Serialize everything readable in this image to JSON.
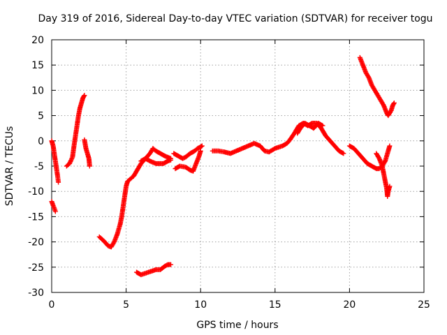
{
  "chart_data": {
    "type": "scatter",
    "title": "Day 319 of 2016, Sidereal Day-to-day VTEC variation (SDTVAR) for receiver togu",
    "xlabel": "GPS time / hours",
    "ylabel": "SDTVAR / TECUs",
    "xlim": [
      0,
      25
    ],
    "ylim": [
      -30,
      20
    ],
    "xticks": [
      "0",
      "5",
      "10",
      "15",
      "20",
      "25"
    ],
    "yticks": [
      "20",
      "15",
      "10",
      "5",
      "0",
      "-5",
      "-10",
      "-15",
      "-20",
      "-25",
      "-30"
    ],
    "grid": true,
    "marker": "plus",
    "color": "#ff0000",
    "series": [
      {
        "points": [
          [
            0.0,
            -12.0
          ],
          [
            0.1,
            -12.8
          ],
          [
            0.2,
            -13.5
          ],
          [
            0.25,
            -14.0
          ]
        ]
      },
      {
        "points": [
          [
            0.0,
            0.0
          ],
          [
            0.1,
            -1.0
          ],
          [
            0.2,
            -3.0
          ],
          [
            0.3,
            -5.0
          ],
          [
            0.4,
            -7.0
          ],
          [
            0.45,
            -8.2
          ]
        ]
      },
      {
        "points": [
          [
            1.0,
            -5.0
          ],
          [
            1.2,
            -4.5
          ],
          [
            1.4,
            -3.2
          ],
          [
            1.5,
            -1.0
          ],
          [
            1.6,
            1.0
          ],
          [
            1.7,
            3.0
          ],
          [
            1.8,
            5.0
          ],
          [
            1.9,
            6.5
          ],
          [
            2.0,
            7.5
          ],
          [
            2.1,
            8.5
          ],
          [
            2.2,
            9.0
          ]
        ]
      },
      {
        "points": [
          [
            2.2,
            0.2
          ],
          [
            2.3,
            -1.5
          ],
          [
            2.4,
            -2.5
          ],
          [
            2.5,
            -3.5
          ],
          [
            2.55,
            -5.0
          ]
        ]
      },
      {
        "points": [
          [
            3.2,
            -19.0
          ],
          [
            3.5,
            -19.8
          ],
          [
            3.8,
            -20.8
          ],
          [
            4.0,
            -21.0
          ],
          [
            4.2,
            -20.0
          ],
          [
            4.4,
            -18.5
          ],
          [
            4.6,
            -16.5
          ],
          [
            4.7,
            -15.0
          ],
          [
            4.8,
            -13.0
          ],
          [
            4.9,
            -11.0
          ],
          [
            5.0,
            -9.0
          ],
          [
            5.1,
            -8.0
          ],
          [
            5.3,
            -7.5
          ],
          [
            5.5,
            -7.0
          ],
          [
            5.8,
            -5.5
          ],
          [
            6.0,
            -4.5
          ],
          [
            6.3,
            -3.5
          ],
          [
            6.6,
            -2.5
          ],
          [
            6.8,
            -1.5
          ],
          [
            7.0,
            -2.0
          ],
          [
            7.3,
            -2.5
          ],
          [
            7.6,
            -3.0
          ],
          [
            8.0,
            -3.5
          ]
        ]
      },
      {
        "points": [
          [
            6.0,
            -4.0
          ],
          [
            6.3,
            -3.5
          ],
          [
            6.6,
            -4.0
          ],
          [
            7.0,
            -4.5
          ],
          [
            7.5,
            -4.5
          ],
          [
            7.8,
            -4.0
          ],
          [
            8.0,
            -3.8
          ]
        ]
      },
      {
        "points": [
          [
            5.7,
            -26.0
          ],
          [
            6.0,
            -26.5
          ],
          [
            6.5,
            -26.0
          ],
          [
            7.0,
            -25.5
          ],
          [
            7.3,
            -25.5
          ],
          [
            7.6,
            -24.8
          ],
          [
            7.8,
            -24.5
          ],
          [
            8.0,
            -24.5
          ]
        ]
      },
      {
        "points": [
          [
            8.2,
            -2.5
          ],
          [
            8.5,
            -3.0
          ],
          [
            8.8,
            -3.5
          ],
          [
            9.0,
            -3.2
          ],
          [
            9.3,
            -2.5
          ],
          [
            9.6,
            -2.0
          ],
          [
            9.8,
            -1.5
          ],
          [
            10.0,
            -1.2
          ],
          [
            10.1,
            -1.0
          ]
        ]
      },
      {
        "points": [
          [
            8.3,
            -5.5
          ],
          [
            8.6,
            -5.0
          ],
          [
            9.0,
            -5.2
          ],
          [
            9.3,
            -5.8
          ],
          [
            9.5,
            -6.0
          ],
          [
            9.7,
            -4.5
          ],
          [
            9.9,
            -3.0
          ],
          [
            10.0,
            -2.0
          ]
        ]
      },
      {
        "points": [
          [
            10.8,
            -2.0
          ],
          [
            11.2,
            -2.0
          ],
          [
            11.6,
            -2.2
          ],
          [
            12.0,
            -2.5
          ],
          [
            12.4,
            -2.0
          ],
          [
            12.8,
            -1.5
          ],
          [
            13.2,
            -1.0
          ],
          [
            13.6,
            -0.5
          ],
          [
            14.0,
            -1.0
          ],
          [
            14.3,
            -2.0
          ],
          [
            14.6,
            -2.2
          ],
          [
            15.0,
            -1.5
          ],
          [
            15.5,
            -1.0
          ],
          [
            15.8,
            -0.5
          ],
          [
            16.0,
            0.2
          ],
          [
            16.3,
            1.5
          ],
          [
            16.6,
            3.0
          ],
          [
            16.9,
            3.5
          ],
          [
            17.2,
            3.0
          ],
          [
            17.5,
            3.5
          ],
          [
            17.8,
            3.5
          ],
          [
            18.1,
            2.5
          ],
          [
            18.4,
            1.0
          ],
          [
            18.7,
            0.0
          ],
          [
            19.0,
            -1.0
          ],
          [
            19.3,
            -2.0
          ],
          [
            19.6,
            -2.5
          ]
        ]
      },
      {
        "points": [
          [
            16.5,
            1.5
          ],
          [
            16.7,
            2.5
          ],
          [
            17.0,
            3.5
          ],
          [
            17.3,
            3.0
          ],
          [
            17.6,
            2.5
          ],
          [
            17.9,
            3.5
          ],
          [
            18.2,
            3.0
          ]
        ]
      },
      {
        "points": [
          [
            20.0,
            -1.0
          ],
          [
            20.3,
            -1.5
          ],
          [
            20.6,
            -2.5
          ],
          [
            20.9,
            -3.5
          ],
          [
            21.2,
            -4.5
          ],
          [
            21.5,
            -5.0
          ],
          [
            21.8,
            -5.5
          ],
          [
            22.0,
            -5.5
          ],
          [
            22.2,
            -5.0
          ],
          [
            22.4,
            -4.0
          ],
          [
            22.6,
            -2.0
          ],
          [
            22.7,
            -1.0
          ]
        ]
      },
      {
        "points": [
          [
            21.8,
            -2.5
          ],
          [
            22.0,
            -3.5
          ],
          [
            22.2,
            -5.0
          ],
          [
            22.3,
            -6.5
          ],
          [
            22.4,
            -8.0
          ],
          [
            22.5,
            -9.5
          ],
          [
            22.55,
            -11.0
          ],
          [
            22.6,
            -10.0
          ],
          [
            22.7,
            -9.0
          ]
        ]
      },
      {
        "points": [
          [
            20.7,
            16.5
          ],
          [
            20.9,
            15.0
          ],
          [
            21.1,
            13.5
          ],
          [
            21.3,
            12.5
          ],
          [
            21.5,
            11.0
          ],
          [
            21.7,
            10.0
          ],
          [
            21.9,
            9.0
          ],
          [
            22.1,
            8.0
          ],
          [
            22.3,
            7.0
          ],
          [
            22.5,
            5.5
          ],
          [
            22.6,
            5.0
          ],
          [
            22.8,
            6.0
          ],
          [
            22.9,
            7.0
          ],
          [
            23.0,
            7.5
          ]
        ]
      }
    ]
  }
}
